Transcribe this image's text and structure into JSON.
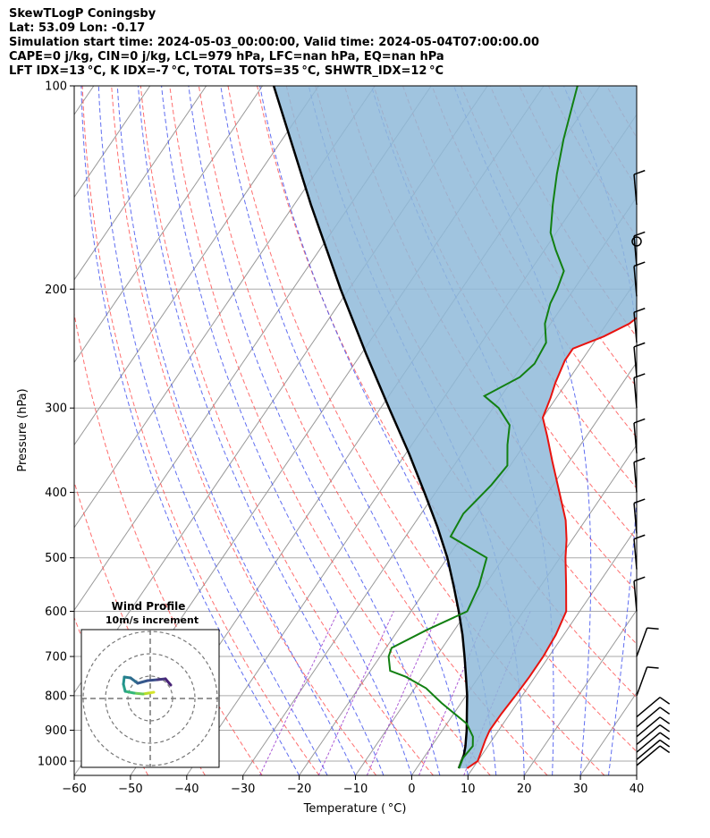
{
  "header": {
    "line1": "SkewTLogP Coningsby",
    "line2": "Lat: 53.09   Lon: -0.17",
    "line3": "Simulation start time: 2024-05-03_00:00:00, Valid time: 2024-05-04T07:00:00.00",
    "line4": "CAPE=0 j/kg, CIN=0 j/kg, LCL=979 hPa, LFC=nan hPa, EQ=nan hPa",
    "line5": "LFT IDX=13 °C, K IDX=-7 °C, TOTAL TOTS=35 °C, SHWTR_IDX=12 °C"
  },
  "colors": {
    "temperature": "#e8130f",
    "dewpoint": "#128012",
    "parcel": "#000000",
    "cape_fill": "#8fbad9",
    "dry_adiabats": "#ff5555",
    "moist_adiabats": "#4455ee",
    "mixing_ratio": "#9933cc",
    "isotherms": "#999999",
    "isobars": "#aaaaaa"
  },
  "chart_data": {
    "type": "line",
    "subtype": "skew-T log-P diagram",
    "xlabel": "Temperature ( °C)",
    "ylabel": "Pressure (hPa)",
    "xlim": [
      -60,
      40
    ],
    "ylim": [
      1050,
      100
    ],
    "yscale": "log",
    "grid": true,
    "x_ticks": [
      "−60",
      "−50",
      "−40",
      "−30",
      "−20",
      "−10",
      "0",
      "10",
      "20",
      "30",
      "40"
    ],
    "y_ticks": [
      "100",
      "200",
      "300",
      "400",
      "500",
      "600",
      "700",
      "800",
      "900",
      "1000"
    ],
    "series": [
      {
        "name": "",
        "key": "temperature",
        "points": [
          [
            1025,
            9
          ],
          [
            1000,
            10
          ],
          [
            970,
            9.5
          ],
          [
            930,
            8.8
          ],
          [
            900,
            8.4
          ],
          [
            850,
            8.5
          ],
          [
            800,
            8.8
          ],
          [
            750,
            9
          ],
          [
            700,
            9
          ],
          [
            650,
            8.6
          ],
          [
            600,
            7.6
          ],
          [
            550,
            4.5
          ],
          [
            500,
            1
          ],
          [
            470,
            -1
          ],
          [
            440,
            -3.5
          ],
          [
            400,
            -8
          ],
          [
            360,
            -13
          ],
          [
            330,
            -17
          ],
          [
            310,
            -20
          ],
          [
            290,
            -21
          ],
          [
            275,
            -22
          ],
          [
            255,
            -23
          ],
          [
            245,
            -23
          ],
          [
            235,
            -19
          ],
          [
            225,
            -16
          ],
          [
            205,
            -13
          ],
          [
            190,
            -11
          ],
          [
            175,
            -10
          ],
          [
            160,
            -9.8
          ],
          [
            145,
            -10
          ],
          [
            130,
            -10.5
          ],
          [
            115,
            -13
          ],
          [
            100,
            -18
          ]
        ]
      },
      {
        "name": "",
        "key": "dewpoint",
        "points": [
          [
            1025,
            7.5
          ],
          [
            990,
            7
          ],
          [
            950,
            7.3
          ],
          [
            920,
            6.2
          ],
          [
            880,
            3.5
          ],
          [
            820,
            -3.5
          ],
          [
            780,
            -8
          ],
          [
            750,
            -13
          ],
          [
            735,
            -16.5
          ],
          [
            700,
            -18.5
          ],
          [
            680,
            -19
          ],
          [
            640,
            -15
          ],
          [
            600,
            -10
          ],
          [
            550,
            -11
          ],
          [
            500,
            -13
          ],
          [
            465,
            -22
          ],
          [
            430,
            -22.5
          ],
          [
            390,
            -21
          ],
          [
            365,
            -20.5
          ],
          [
            340,
            -23
          ],
          [
            318,
            -25
          ],
          [
            300,
            -29
          ],
          [
            288,
            -33
          ],
          [
            270,
            -29
          ],
          [
            258,
            -28
          ],
          [
            240,
            -28.5
          ],
          [
            225,
            -31
          ],
          [
            210,
            -32.5
          ],
          [
            200,
            -33
          ],
          [
            188,
            -34
          ],
          [
            175,
            -38
          ],
          [
            165,
            -41
          ],
          [
            150,
            -44
          ],
          [
            135,
            -47
          ],
          [
            120,
            -50
          ],
          [
            100,
            -54
          ]
        ]
      },
      {
        "name": "",
        "key": "parcel",
        "points": [
          [
            1025,
            7.5
          ],
          [
            979,
            6.8
          ],
          [
            950,
            6
          ],
          [
            900,
            4.3
          ],
          [
            850,
            2.3
          ],
          [
            800,
            0.2
          ],
          [
            750,
            -2.3
          ],
          [
            700,
            -5
          ],
          [
            650,
            -8
          ],
          [
            600,
            -11.5
          ],
          [
            550,
            -15.5
          ],
          [
            500,
            -20
          ],
          [
            450,
            -25.5
          ],
          [
            400,
            -32
          ],
          [
            350,
            -39.5
          ],
          [
            300,
            -48.5
          ],
          [
            250,
            -59
          ],
          [
            200,
            -71.5
          ],
          [
            150,
            -87
          ],
          [
            100,
            -108
          ]
        ]
      }
    ],
    "wind_barbs": {
      "description": "wind barbs along right edge at listed pressure levels",
      "levels_hPa": [
        1015,
        995,
        970,
        945,
        920,
        890,
        860,
        800,
        700,
        600,
        520,
        460,
        400,
        350,
        300,
        270,
        240,
        205,
        185,
        170,
        150
      ]
    },
    "wind_profile": {
      "title": "Wind Profile",
      "subtitle": "10m/s increment",
      "rings": 3
    }
  }
}
